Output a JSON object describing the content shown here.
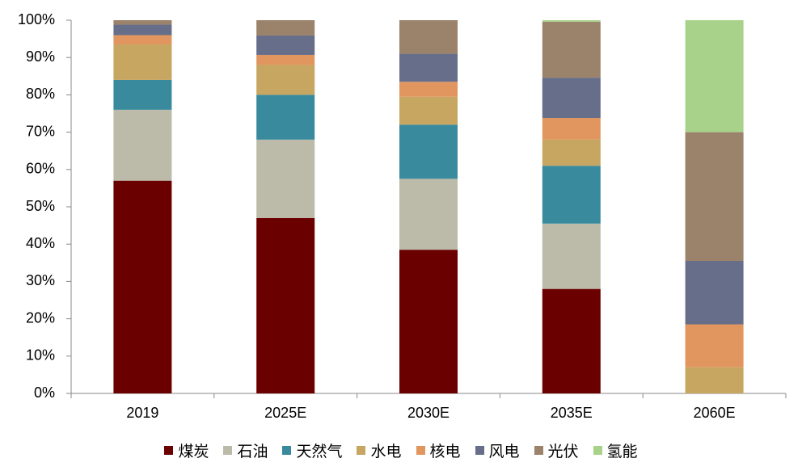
{
  "chart_data": {
    "type": "stacked_bar",
    "categories": [
      "2019",
      "2025E",
      "2030E",
      "2035E",
      "2060E"
    ],
    "series": [
      {
        "name": "煤炭",
        "color": "#6b0000",
        "values": [
          57,
          47,
          38.5,
          28,
          0
        ]
      },
      {
        "name": "石油",
        "color": "#bcbaa8",
        "values": [
          19,
          21,
          19,
          17.5,
          0
        ]
      },
      {
        "name": "天然气",
        "color": "#3a8a9e",
        "values": [
          8,
          12,
          14.5,
          15.5,
          0
        ]
      },
      {
        "name": "水电",
        "color": "#c6a661",
        "values": [
          9.5,
          8,
          7.5,
          7,
          7
        ]
      },
      {
        "name": "核电",
        "color": "#e0965e",
        "values": [
          2.5,
          2.7,
          4,
          5.8,
          11.5
        ]
      },
      {
        "name": "风电",
        "color": "#666e8a",
        "values": [
          2.8,
          5.2,
          7.5,
          10.8,
          17
        ]
      },
      {
        "name": "光伏",
        "color": "#9b826a",
        "values": [
          1.2,
          4.1,
          9,
          15,
          34.5
        ]
      },
      {
        "name": "氢能",
        "color": "#a8d28a",
        "values": [
          0,
          0,
          0,
          0.4,
          30
        ]
      }
    ],
    "ylim": [
      0,
      100
    ],
    "yticks": [
      {
        "value": 0,
        "label": "0%"
      },
      {
        "value": 10,
        "label": "10%"
      },
      {
        "value": 20,
        "label": "20%"
      },
      {
        "value": 30,
        "label": "30%"
      },
      {
        "value": 40,
        "label": "40%"
      },
      {
        "value": 50,
        "label": "50%"
      },
      {
        "value": 60,
        "label": "60%"
      },
      {
        "value": 70,
        "label": "70%"
      },
      {
        "value": 80,
        "label": "80%"
      },
      {
        "value": 90,
        "label": "90%"
      },
      {
        "value": 100,
        "label": "100%"
      }
    ],
    "legend": "bottom"
  }
}
